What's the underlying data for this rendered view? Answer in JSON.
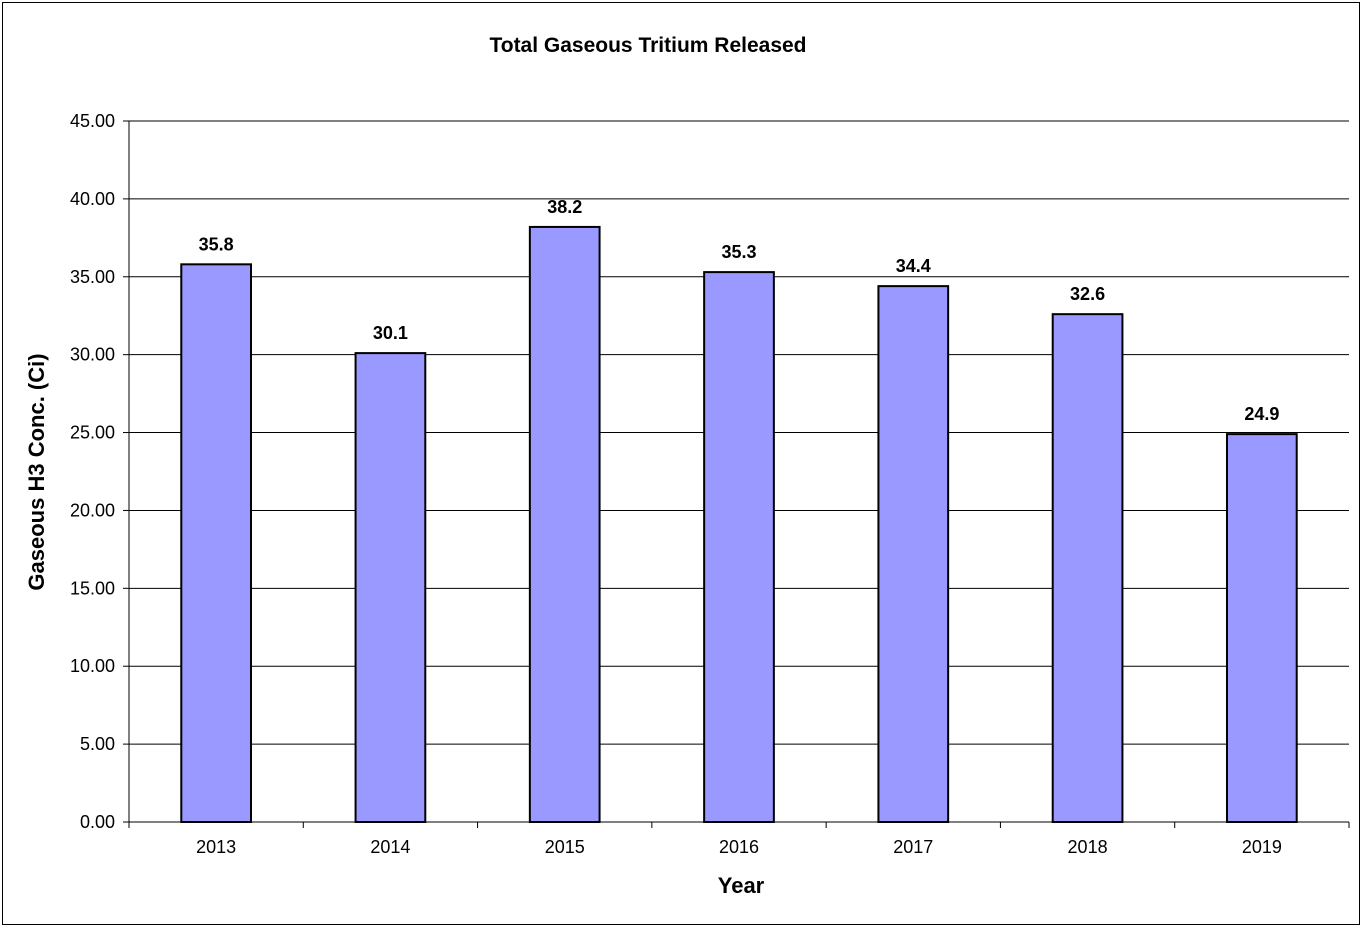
{
  "chart_data": {
    "type": "bar",
    "title": "Total Gaseous Tritium Released",
    "xlabel": "Year",
    "ylabel": "Gaseous H3 Conc. (Ci)",
    "categories": [
      "2013",
      "2014",
      "2015",
      "2016",
      "2017",
      "2018",
      "2019"
    ],
    "values": [
      35.8,
      30.1,
      38.2,
      35.3,
      34.4,
      32.6,
      24.9
    ],
    "data_labels": [
      "35.8",
      "30.1",
      "38.2",
      "35.3",
      "34.4",
      "32.6",
      "24.9"
    ],
    "ylim": [
      0,
      45
    ],
    "y_ticks": [
      "0.00",
      "5.00",
      "10.00",
      "15.00",
      "20.00",
      "25.00",
      "30.00",
      "35.00",
      "40.00",
      "45.00"
    ],
    "grid": true,
    "legend": "none",
    "colors": {
      "bar_fill": "#9999ff",
      "bar_stroke": "#000000",
      "grid": "#000000"
    }
  }
}
